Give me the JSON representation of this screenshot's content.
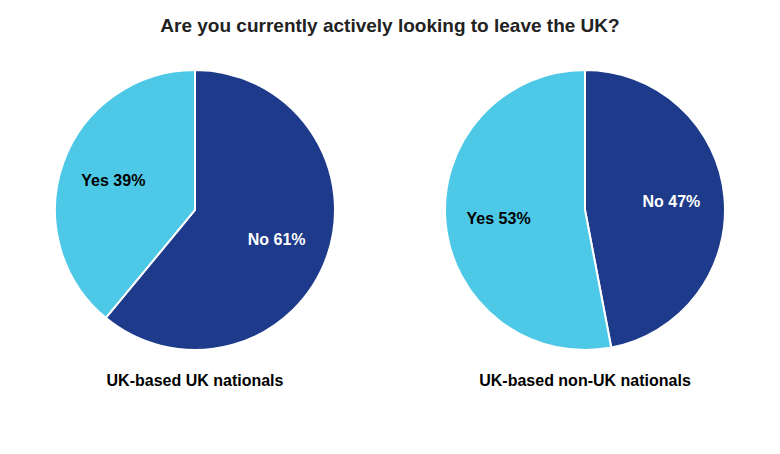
{
  "chart_data": {
    "type": "pie",
    "title": "Are you currently actively looking to leave the UK?",
    "data_labels": true,
    "series": [
      {
        "name": "UK-based UK nationals",
        "values": [
          61,
          39
        ],
        "value_labels": [
          "No 61%",
          "Yes 39%"
        ],
        "colors": [
          "#1e3a8a",
          "#4dc8e6"
        ]
      },
      {
        "name": "UK-based non-UK nationals",
        "values": [
          47,
          53
        ],
        "value_labels": [
          "No 47%",
          "Yes 53%"
        ],
        "colors": [
          "#1e3a8a",
          "#4dc8e6"
        ]
      }
    ]
  }
}
